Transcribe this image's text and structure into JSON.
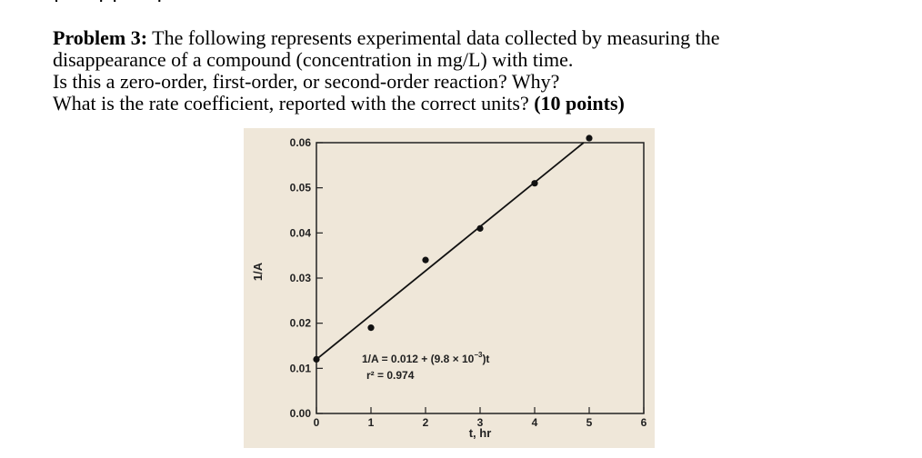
{
  "cut_line": "(          .  .  .    ),  (  .  .  .  )",
  "problem": {
    "label": "Problem 3:",
    "line1_rest": " The following represents experimental data collected by measuring the",
    "line2": "disappearance of a compound (concentration in mg/L) with time.",
    "line3": "Is this a zero-order, first-order, or second-order reaction? Why?",
    "line4_text": "What is the rate coefficient, reported with the correct units? ",
    "points": "(10 points)"
  },
  "chart_data": {
    "type": "scatter",
    "xlabel": "t, hr",
    "ylabel": "1/A",
    "xlim": [
      0,
      6
    ],
    "ylim": [
      0,
      0.06
    ],
    "x_ticks": [
      "0",
      "1",
      "2",
      "3",
      "4",
      "5",
      "6"
    ],
    "y_ticks": [
      "0.00",
      "0.01",
      "0.02",
      "0.03",
      "0.04",
      "0.05",
      "0.06"
    ],
    "points": [
      {
        "x": 0,
        "y": 0.012
      },
      {
        "x": 1,
        "y": 0.019
      },
      {
        "x": 2,
        "y": 0.034
      },
      {
        "x": 3,
        "y": 0.041
      },
      {
        "x": 4,
        "y": 0.051
      },
      {
        "x": 5,
        "y": 0.061
      }
    ],
    "fit_line": {
      "intercept": 0.012,
      "slope": 0.0098
    },
    "annotation_eq": "1/A = 0.012 + (9.8 × 10",
    "annotation_exp": "−3",
    "annotation_t": ")t",
    "annotation_r2": "r² = 0.974",
    "grid": false,
    "legend": "none"
  }
}
